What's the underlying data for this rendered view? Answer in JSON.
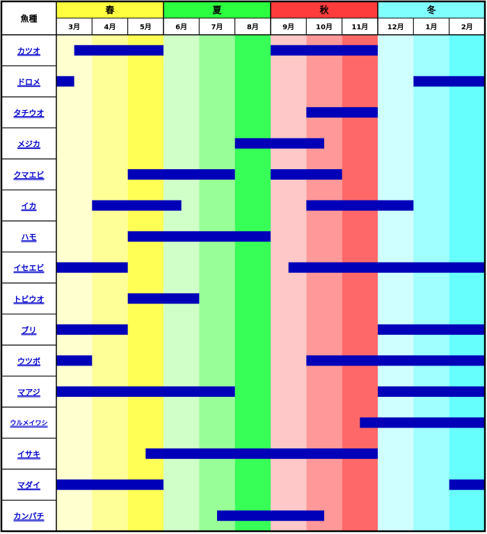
{
  "chart_data": {
    "type": "table",
    "corner_label": "魚種",
    "seasons": [
      {
        "label": "春",
        "color": "#ffff40"
      },
      {
        "label": "夏",
        "color": "#2cff40"
      },
      {
        "label": "秋",
        "color": "#ff3c3c"
      },
      {
        "label": "冬",
        "color": "#80ffff"
      }
    ],
    "months": [
      {
        "label": "3月",
        "color": "#ffffd0"
      },
      {
        "label": "4月",
        "color": "#ffff98"
      },
      {
        "label": "5月",
        "color": "#ffff55"
      },
      {
        "label": "6月",
        "color": "#d0ffc8"
      },
      {
        "label": "7月",
        "color": "#98ff98"
      },
      {
        "label": "8月",
        "color": "#38ff58"
      },
      {
        "label": "9月",
        "color": "#ffc8c8"
      },
      {
        "label": "10月",
        "color": "#ff9898"
      },
      {
        "label": "11月",
        "color": "#ff6868"
      },
      {
        "label": "12月",
        "color": "#d0ffff"
      },
      {
        "label": "1月",
        "color": "#a0ffff"
      },
      {
        "label": "2月",
        "color": "#68ffff"
      }
    ],
    "bar_color": "#0000b8",
    "fish": [
      {
        "name": "カツオ",
        "bars": [
          [
            0.5,
            3
          ],
          [
            6,
            9
          ]
        ]
      },
      {
        "name": "ドロメ",
        "bars": [
          [
            0,
            0.5
          ],
          [
            10,
            12
          ]
        ]
      },
      {
        "name": "タチウオ",
        "bars": [
          [
            7,
            9
          ]
        ]
      },
      {
        "name": "メジカ",
        "bars": [
          [
            5,
            7.5
          ]
        ]
      },
      {
        "name": "クマエビ",
        "bars": [
          [
            2,
            5
          ],
          [
            6,
            8
          ]
        ]
      },
      {
        "name": "イカ",
        "bars": [
          [
            1,
            3.5
          ],
          [
            7,
            10
          ]
        ]
      },
      {
        "name": "ハモ",
        "bars": [
          [
            2,
            6
          ]
        ]
      },
      {
        "name": "イセエビ",
        "bars": [
          [
            0,
            2
          ],
          [
            6.5,
            12
          ]
        ]
      },
      {
        "name": "トビウオ",
        "bars": [
          [
            2,
            4
          ]
        ]
      },
      {
        "name": "ブリ",
        "bars": [
          [
            0,
            2
          ],
          [
            9,
            12
          ]
        ]
      },
      {
        "name": "ウツボ",
        "bars": [
          [
            0,
            1
          ],
          [
            7,
            12
          ]
        ]
      },
      {
        "name": "マアジ",
        "bars": [
          [
            0,
            5
          ],
          [
            9,
            12
          ]
        ]
      },
      {
        "name": "ウルメイワシ",
        "bars": [
          [
            8.5,
            12
          ]
        ]
      },
      {
        "name": "イサキ",
        "bars": [
          [
            2.5,
            9
          ]
        ]
      },
      {
        "name": "マダイ",
        "bars": [
          [
            0,
            3
          ],
          [
            11,
            12
          ]
        ]
      },
      {
        "name": "カンパチ",
        "bars": [
          [
            4.5,
            7.5
          ]
        ]
      }
    ]
  }
}
